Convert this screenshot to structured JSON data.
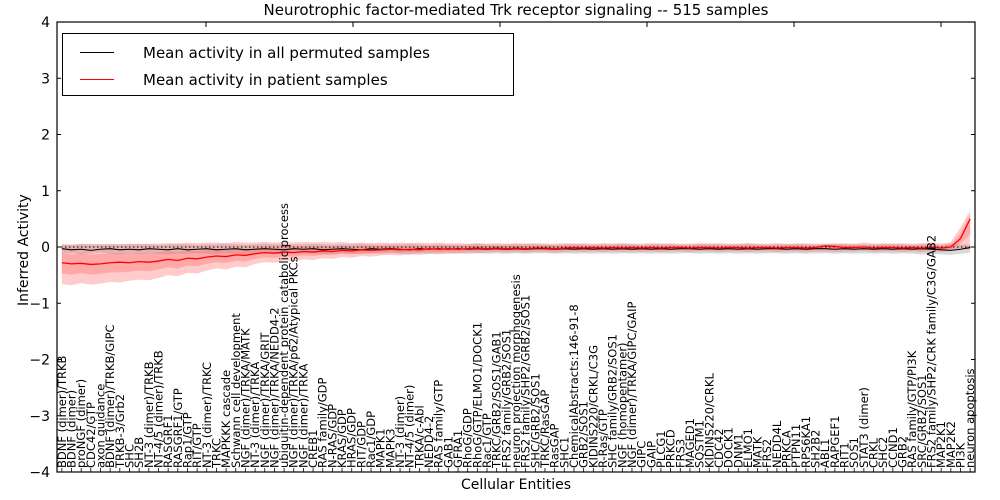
{
  "chart_data": {
    "type": "line",
    "title": "Neurotrophic factor-mediated Trk receptor signaling -- 515 samples",
    "xlabel": "Cellular Entities",
    "ylabel": "Inferred Activity",
    "ylim": [
      -4,
      4
    ],
    "yticks": [
      4,
      3,
      2,
      1,
      0,
      -1,
      -2,
      -3,
      -4
    ],
    "grid": false,
    "legend_position": "upper left",
    "zero_line": {
      "y": 0,
      "style": "dotted",
      "color": "#000000"
    },
    "x_tick_label_rotation": 90,
    "categories": [
      "BDNF (dimer)/TRKB",
      "BDNF (dimer)",
      "proNGF (dimer)",
      "CDC42/GTP",
      "axon guidance",
      "BDNF (dimer)/TRKB/GIPC",
      "TRKB-3/Grb2",
      "SHC",
      "SH2B",
      "NT-3 (dimer)/TRKB",
      "NT-4/5 (dimer)/TRKB",
      "RASGRF1",
      "RASGRF1/GTP",
      "Rap1/GTP",
      "RIT/GTP",
      "NT-3 (dimer)/TRKC",
      "TRKC",
      "MAPKKK cascade",
      "Schwann cell development",
      "NGF (dimer)/TRKA/MATK",
      "NT-3 (dimer)/TRKA",
      "NGF (dimer)/TRKA/GRIT",
      "NGF (dimer)/TRKA/NEDD4-2",
      "ubiquitin-dependent protein catabolic process",
      "NGF (dimer)/TRKA/p62/Atypical PKCs",
      "NGF (dimer)/TRKA",
      "CREB1",
      "RAS family/GDP",
      "N-RAS/GDP",
      "KRAS/GDP",
      "HRAS/GDP",
      "RIT/GDP",
      "Rac1/GDP",
      "MAPK1",
      "MAPK3",
      "NT-3 (dimer)",
      "NT-4/5 (dimer)",
      "TRKA/c-Abl",
      "NEDD4-2",
      "RAS family/GTP",
      "GAB1",
      "GFRA1",
      "RhoG/GDP",
      "RhoG/GTP/ELMO1/DOCK1",
      "Rac1/GTP",
      "TRKC/GRB2/SOS1/GAB1",
      "FRS2 family/GRB2/SOS1",
      "neuron projection morphogenesis",
      "FRS2 family/SHP2/GRB2/SOS1",
      "SHC/GRB2/SOS1",
      "TRKC/RasGAP",
      "RasGAP",
      "SHC1",
      "ChemicalAbstracts:146-91-8",
      "GRB2/SOS1",
      "KIDINS220/CRKL/C3G",
      "R-Ras/GTP",
      "SHC family/GRB2/SOS1",
      "NGF (homopentamer)",
      "NGF (dimer)/TRKA/GIPC/GAIP",
      "GIPC",
      "GAIP",
      "PLCG1",
      "PRKCD",
      "FRS3",
      "MAGED1",
      "SQSTM1",
      "KIDINS220/CRKL",
      "CDC42",
      "DOCK1",
      "DNM1",
      "ELMO1",
      "MATK",
      "FRS2",
      "NEDD4L",
      "PRKCA",
      "PTPN11",
      "RPS6KA1",
      "SH2B2",
      "ABL1",
      "RAPGEF1",
      "RIT1",
      "SOS1",
      "STAT3 (dimer)",
      "CRKL",
      "SHC2",
      "CCND1",
      "GRB2",
      "RAS family/GTP/PI3K",
      "SRC/GRB2/SOS1",
      "FRS2 family/SHP2/CRK family/C3G/GAB2",
      "MAP2K1",
      "MAP2K2",
      "PI3K",
      "neuron apoptosis"
    ],
    "series": [
      {
        "name": "Mean activity in all permuted samples",
        "color": "#000000",
        "band_color": "#aaaaaa",
        "band_opacity": 0.45,
        "double_band": false,
        "values": [
          -0.03,
          -0.05,
          -0.04,
          -0.06,
          -0.04,
          -0.03,
          -0.05,
          -0.04,
          -0.05,
          -0.03,
          -0.04,
          -0.05,
          -0.03,
          -0.05,
          -0.04,
          -0.03,
          -0.05,
          -0.04,
          -0.03,
          -0.05,
          -0.04,
          -0.03,
          -0.04,
          -0.05,
          -0.03,
          -0.04,
          -0.03,
          -0.05,
          -0.04,
          -0.03,
          -0.04,
          -0.05,
          -0.03,
          -0.04,
          -0.03,
          -0.04,
          -0.05,
          -0.03,
          -0.04,
          -0.03,
          -0.04,
          -0.03,
          -0.04,
          -0.03,
          -0.04,
          -0.03,
          -0.04,
          -0.03,
          -0.04,
          -0.03,
          -0.03,
          -0.04,
          -0.03,
          -0.04,
          -0.03,
          -0.04,
          -0.03,
          -0.04,
          -0.03,
          -0.04,
          -0.03,
          -0.04,
          -0.03,
          -0.04,
          -0.03,
          -0.03,
          -0.04,
          -0.03,
          -0.04,
          -0.03,
          -0.04,
          -0.03,
          -0.04,
          -0.03,
          -0.03,
          -0.04,
          -0.03,
          -0.04,
          -0.03,
          -0.03,
          -0.04,
          -0.03,
          -0.04,
          -0.03,
          -0.04,
          -0.03,
          -0.04,
          -0.03,
          -0.04,
          -0.03,
          -0.04,
          -0.05,
          -0.06,
          -0.04,
          -0.01
        ],
        "band_lo": [
          -0.12,
          -0.11,
          -0.13,
          -0.12,
          -0.1,
          -0.12,
          -0.13,
          -0.11,
          -0.12,
          -0.11,
          -0.12,
          -0.13,
          -0.11,
          -0.12,
          -0.11,
          -0.12,
          -0.13,
          -0.11,
          -0.12,
          -0.13,
          -0.12,
          -0.11,
          -0.12,
          -0.13,
          -0.11,
          -0.12,
          -0.11,
          -0.13,
          -0.12,
          -0.11,
          -0.12,
          -0.13,
          -0.11,
          -0.12,
          -0.11,
          -0.12,
          -0.13,
          -0.11,
          -0.12,
          -0.11,
          -0.12,
          -0.11,
          -0.12,
          -0.11,
          -0.12,
          -0.11,
          -0.12,
          -0.11,
          -0.12,
          -0.11,
          -0.11,
          -0.12,
          -0.11,
          -0.12,
          -0.11,
          -0.12,
          -0.11,
          -0.12,
          -0.11,
          -0.12,
          -0.11,
          -0.12,
          -0.11,
          -0.12,
          -0.11,
          -0.11,
          -0.12,
          -0.11,
          -0.12,
          -0.11,
          -0.12,
          -0.11,
          -0.12,
          -0.11,
          -0.11,
          -0.12,
          -0.11,
          -0.12,
          -0.11,
          -0.11,
          -0.12,
          -0.11,
          -0.12,
          -0.11,
          -0.12,
          -0.11,
          -0.12,
          -0.11,
          -0.12,
          -0.13,
          -0.12,
          -0.13,
          -0.14,
          -0.12,
          -0.1
        ],
        "band_hi": [
          0.05,
          0.04,
          0.05,
          0.06,
          0.05,
          0.04,
          0.05,
          0.05,
          0.06,
          0.05,
          0.04,
          0.05,
          0.06,
          0.05,
          0.04,
          0.05,
          0.05,
          0.06,
          0.05,
          0.04,
          0.05,
          0.06,
          0.05,
          0.04,
          0.05,
          0.05,
          0.06,
          0.05,
          0.04,
          0.05,
          0.05,
          0.06,
          0.05,
          0.04,
          0.05,
          0.05,
          0.06,
          0.05,
          0.04,
          0.05,
          0.05,
          0.04,
          0.05,
          0.06,
          0.05,
          0.04,
          0.05,
          0.05,
          0.06,
          0.05,
          0.05,
          0.04,
          0.05,
          0.06,
          0.05,
          0.04,
          0.05,
          0.05,
          0.06,
          0.05,
          0.04,
          0.05,
          0.06,
          0.05,
          0.04,
          0.05,
          0.05,
          0.06,
          0.05,
          0.04,
          0.05,
          0.06,
          0.05,
          0.04,
          0.05,
          0.05,
          0.06,
          0.05,
          0.04,
          0.05,
          0.05,
          0.06,
          0.05,
          0.04,
          0.05,
          0.05,
          0.06,
          0.05,
          0.04,
          0.05,
          0.05,
          0.04,
          0.06,
          0.05,
          0.04
        ]
      },
      {
        "name": "Mean activity in patient samples",
        "color": "#ff0000",
        "band_color": "#ff6060",
        "band_opacity": 0.33,
        "double_band": true,
        "values": [
          -0.28,
          -0.3,
          -0.29,
          -0.31,
          -0.3,
          -0.28,
          -0.27,
          -0.28,
          -0.26,
          -0.27,
          -0.25,
          -0.22,
          -0.24,
          -0.2,
          -0.21,
          -0.18,
          -0.16,
          -0.17,
          -0.14,
          -0.15,
          -0.12,
          -0.1,
          -0.11,
          -0.09,
          -0.1,
          -0.08,
          -0.09,
          -0.07,
          -0.08,
          -0.06,
          -0.07,
          -0.05,
          -0.06,
          -0.05,
          -0.04,
          -0.05,
          -0.04,
          -0.05,
          -0.03,
          -0.04,
          -0.03,
          -0.04,
          -0.03,
          -0.02,
          -0.03,
          -0.02,
          -0.03,
          -0.02,
          -0.03,
          -0.02,
          -0.02,
          -0.03,
          -0.02,
          -0.01,
          -0.02,
          -0.01,
          -0.02,
          -0.01,
          -0.02,
          -0.01,
          -0.02,
          -0.01,
          -0.02,
          -0.01,
          -0.01,
          -0.02,
          -0.01,
          -0.01,
          -0.02,
          -0.01,
          -0.01,
          -0.02,
          -0.01,
          -0.01,
          -0.02,
          -0.01,
          -0.01,
          -0.02,
          -0.01,
          0.02,
          0.01,
          -0.01,
          -0.01,
          0.0,
          -0.02,
          -0.01,
          -0.01,
          -0.02,
          -0.01,
          -0.02,
          -0.01,
          -0.02,
          0.0,
          0.15,
          0.5
        ],
        "band_lo": [
          -0.66,
          -0.68,
          -0.64,
          -0.67,
          -0.65,
          -0.62,
          -0.63,
          -0.6,
          -0.58,
          -0.59,
          -0.55,
          -0.5,
          -0.52,
          -0.46,
          -0.47,
          -0.42,
          -0.38,
          -0.4,
          -0.35,
          -0.36,
          -0.3,
          -0.27,
          -0.28,
          -0.24,
          -0.25,
          -0.22,
          -0.23,
          -0.2,
          -0.21,
          -0.18,
          -0.19,
          -0.16,
          -0.17,
          -0.15,
          -0.14,
          -0.15,
          -0.13,
          -0.14,
          -0.12,
          -0.13,
          -0.11,
          -0.12,
          -0.1,
          -0.11,
          -0.1,
          -0.09,
          -0.1,
          -0.09,
          -0.1,
          -0.09,
          -0.09,
          -0.1,
          -0.09,
          -0.08,
          -0.09,
          -0.08,
          -0.09,
          -0.08,
          -0.09,
          -0.08,
          -0.09,
          -0.08,
          -0.09,
          -0.08,
          -0.08,
          -0.09,
          -0.08,
          -0.08,
          -0.09,
          -0.08,
          -0.08,
          -0.09,
          -0.08,
          -0.08,
          -0.09,
          -0.08,
          -0.08,
          -0.09,
          -0.08,
          -0.08,
          -0.09,
          -0.08,
          -0.08,
          -0.07,
          -0.09,
          -0.08,
          -0.08,
          -0.09,
          -0.08,
          -0.09,
          -0.08,
          -0.09,
          -0.07,
          -0.02,
          -0.05
        ],
        "band_hi": [
          0.05,
          0.04,
          0.06,
          0.04,
          0.05,
          0.06,
          0.05,
          0.06,
          0.05,
          0.06,
          0.06,
          0.07,
          0.06,
          0.08,
          0.07,
          0.08,
          0.08,
          0.07,
          0.09,
          0.08,
          0.08,
          0.09,
          0.08,
          0.09,
          0.08,
          0.09,
          0.08,
          0.09,
          0.08,
          0.09,
          0.07,
          0.08,
          0.07,
          0.08,
          0.07,
          0.08,
          0.07,
          0.08,
          0.07,
          0.08,
          0.06,
          0.07,
          0.06,
          0.07,
          0.06,
          0.07,
          0.06,
          0.07,
          0.06,
          0.07,
          0.06,
          0.06,
          0.07,
          0.06,
          0.07,
          0.06,
          0.07,
          0.06,
          0.07,
          0.06,
          0.06,
          0.07,
          0.06,
          0.07,
          0.06,
          0.06,
          0.07,
          0.06,
          0.07,
          0.06,
          0.06,
          0.07,
          0.06,
          0.06,
          0.07,
          0.06,
          0.06,
          0.07,
          0.06,
          0.06,
          0.07,
          0.06,
          0.06,
          0.08,
          0.06,
          0.07,
          0.06,
          0.07,
          0.06,
          0.07,
          0.08,
          0.06,
          0.09,
          0.35,
          0.65
        ]
      }
    ]
  }
}
